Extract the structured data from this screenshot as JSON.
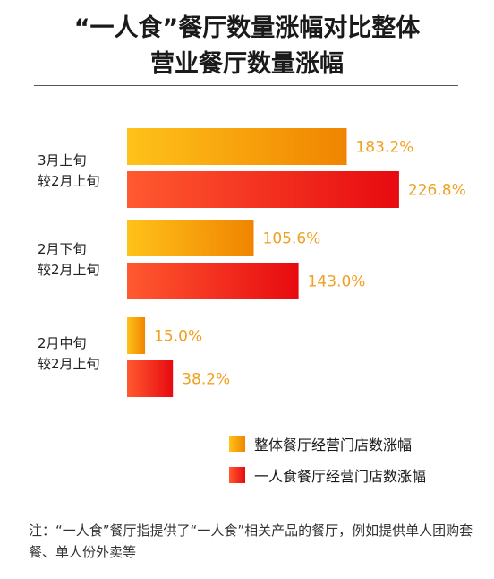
{
  "chart_data": {
    "type": "bar",
    "orientation": "horizontal",
    "title": "“一人食”餐厅数量涨幅对比整体营业餐厅数量涨幅",
    "title_lines": [
      "“一人食”餐厅数量涨幅对比整体",
      "营业餐厅数量涨幅"
    ],
    "categories": [
      {
        "line1": "3月上旬",
        "line2": "较2月上旬"
      },
      {
        "line1": "2月下旬",
        "line2": "较2月上旬"
      },
      {
        "line1": "2月中旬",
        "line2": "较2月上旬"
      }
    ],
    "series": [
      {
        "name": "整体餐厅经营门店数涨幅",
        "values": [
          183.2,
          105.6,
          15.0
        ],
        "labels": [
          "183.2%",
          "105.6%",
          "15.0%"
        ],
        "color_from": "#ffc21a",
        "color_to": "#f08400",
        "label_color": "#f0a020"
      },
      {
        "name": "一人食餐厅经营门店数涨幅",
        "values": [
          226.8,
          143.0,
          38.2
        ],
        "labels": [
          "226.8%",
          "143.0%",
          "38.2%"
        ],
        "color_from": "#ff5a30",
        "color_to": "#e70a10",
        "label_color": "#f0a020"
      }
    ],
    "unit": "%",
    "legend_position": "bottom-right",
    "grid": false
  },
  "legend": {
    "overall": "整体餐厅经营门店数涨幅",
    "solo": "一人食餐厅经营门店数涨幅"
  },
  "note": "注：“一人食”餐厅指提供了“一人食”相关产品的餐厅，例如提供单人团购套餐、单人份外卖等"
}
